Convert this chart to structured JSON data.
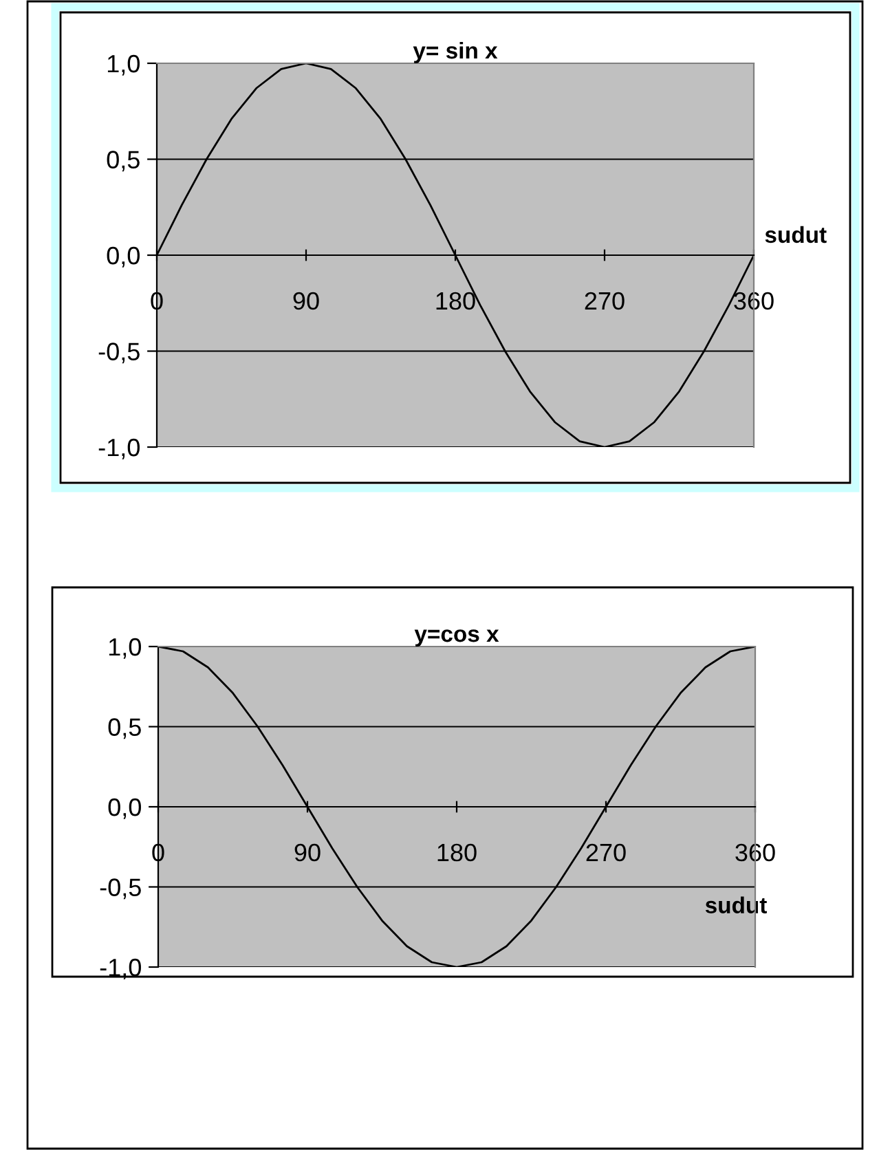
{
  "chart_data": [
    {
      "type": "line",
      "title": "y= sin x",
      "xlabel": "sudut",
      "x": [
        0,
        15,
        30,
        45,
        60,
        75,
        90,
        105,
        120,
        135,
        150,
        165,
        180,
        195,
        210,
        225,
        240,
        255,
        270,
        285,
        300,
        315,
        330,
        345,
        360
      ],
      "series": [
        {
          "color": "#000000",
          "values": [
            0,
            0.26,
            0.5,
            0.71,
            0.87,
            0.97,
            1.0,
            0.97,
            0.87,
            0.71,
            0.5,
            0.26,
            0,
            -0.26,
            -0.5,
            -0.71,
            -0.87,
            -0.97,
            -1.0,
            -0.97,
            -0.87,
            -0.71,
            -0.5,
            -0.26,
            0
          ]
        }
      ],
      "xlim": [
        0,
        360
      ],
      "xticks": [
        0,
        90,
        180,
        270,
        360
      ],
      "ylim": [
        -1,
        1
      ],
      "yticks": [
        {
          "value": -1,
          "label": "-1,0"
        },
        {
          "value": -0.5,
          "label": "-0,5"
        },
        {
          "value": 0,
          "label": "0,0"
        },
        {
          "value": 0.5,
          "label": "0,5"
        },
        {
          "value": 1,
          "label": "1,0"
        }
      ],
      "grid": "y",
      "marker": "none",
      "line_style": "solid"
    },
    {
      "type": "line",
      "title": "y=cos x",
      "xlabel": "sudut",
      "x": [
        0,
        15,
        30,
        45,
        60,
        75,
        90,
        105,
        120,
        135,
        150,
        165,
        180,
        195,
        210,
        225,
        240,
        255,
        270,
        285,
        300,
        315,
        330,
        345,
        360
      ],
      "series": [
        {
          "color": "#000000",
          "values": [
            1.0,
            0.97,
            0.87,
            0.71,
            0.5,
            0.26,
            0,
            -0.26,
            -0.5,
            -0.71,
            -0.87,
            -0.97,
            -1.0,
            -0.97,
            -0.87,
            -0.71,
            -0.5,
            -0.26,
            0,
            0.26,
            0.5,
            0.71,
            0.87,
            0.97,
            1.0
          ]
        }
      ],
      "xlim": [
        0,
        360
      ],
      "xticks": [
        0,
        90,
        180,
        270,
        360
      ],
      "ylim": [
        -1,
        1
      ],
      "yticks": [
        {
          "value": -1,
          "label": "-1,0"
        },
        {
          "value": -0.5,
          "label": "-0,5"
        },
        {
          "value": 0,
          "label": "0,0"
        },
        {
          "value": 0.5,
          "label": "0,5"
        },
        {
          "value": 1,
          "label": "1,0"
        }
      ],
      "grid": "y",
      "marker": "none",
      "line_style": "solid"
    }
  ]
}
